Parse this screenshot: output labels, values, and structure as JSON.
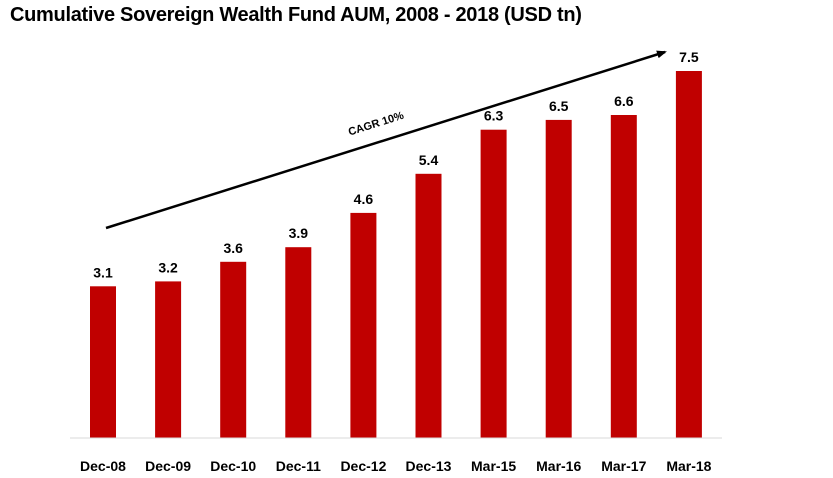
{
  "chart_data": {
    "type": "bar",
    "title": "Cumulative Sovereign Wealth Fund AUM, 2008 - 2018 (USD tn)",
    "xlabel": "",
    "ylabel": "",
    "categories": [
      "Dec-08",
      "Dec-09",
      "Dec-10",
      "Dec-11",
      "Dec-12",
      "Dec-13",
      "Mar-15",
      "Mar-16",
      "Mar-17",
      "Mar-18"
    ],
    "values": [
      3.1,
      3.2,
      3.6,
      3.9,
      4.6,
      5.4,
      6.3,
      6.5,
      6.6,
      7.5
    ],
    "value_labels": [
      "3.1",
      "3.2",
      "3.6",
      "3.9",
      "4.6",
      "5.4",
      "6.3",
      "6.5",
      "6.6",
      "7.5"
    ],
    "ylim": [
      0,
      7.5
    ],
    "grid": false,
    "legend": "none",
    "bar_color": "#c00000",
    "annotation": {
      "text": "CAGR 10%",
      "type": "trend-arrow"
    }
  }
}
